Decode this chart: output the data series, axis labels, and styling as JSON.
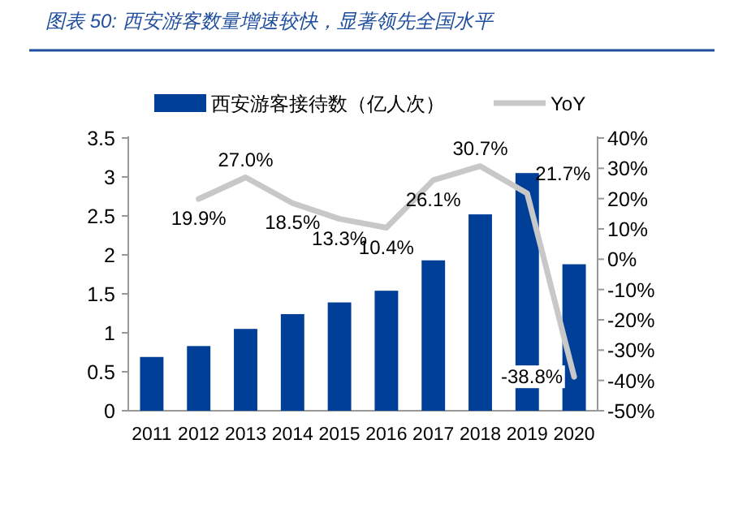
{
  "chart_data": {
    "type": "bar",
    "title": "图表 50: 西安游客数量增速较快，显著领先全国水平",
    "categories": [
      "2011",
      "2012",
      "2013",
      "2014",
      "2015",
      "2016",
      "2017",
      "2018",
      "2019",
      "2020"
    ],
    "series": [
      {
        "name": "西安游客接待数（亿人次）",
        "color": "#003f98",
        "values": [
          0.69,
          0.83,
          1.05,
          1.24,
          1.39,
          1.54,
          1.93,
          2.52,
          3.05,
          1.88
        ]
      },
      {
        "name": "YoY",
        "type": "line",
        "axis": "y2",
        "color": "#c8c8c8",
        "values": [
          null,
          19.9,
          27.0,
          18.5,
          13.3,
          10.4,
          26.1,
          30.7,
          21.7,
          -38.8
        ],
        "value_labels": [
          null,
          "19.9%",
          "27.0%",
          "18.5%",
          "13.3%",
          "10.4%",
          "26.1%",
          "30.7%",
          "21.7%",
          "-38.8%"
        ]
      }
    ],
    "ylim": [
      0,
      3.5
    ],
    "yticks": [
      0,
      0.5,
      1,
      1.5,
      2,
      2.5,
      3,
      3.5
    ],
    "y2lim": [
      -50,
      40
    ],
    "y2ticks": [
      {
        "value": -50,
        "label": "-50%"
      },
      {
        "value": -40,
        "label": "-40%"
      },
      {
        "value": -30,
        "label": "-30%"
      },
      {
        "value": -20,
        "label": "-20%"
      },
      {
        "value": -10,
        "label": "-10%"
      },
      {
        "value": 0,
        "label": "0%"
      },
      {
        "value": 10,
        "label": "10%"
      },
      {
        "value": 20,
        "label": "20%"
      },
      {
        "value": 30,
        "label": "30%"
      },
      {
        "value": 40,
        "label": "40%"
      }
    ],
    "legend": "top",
    "grid": false
  }
}
